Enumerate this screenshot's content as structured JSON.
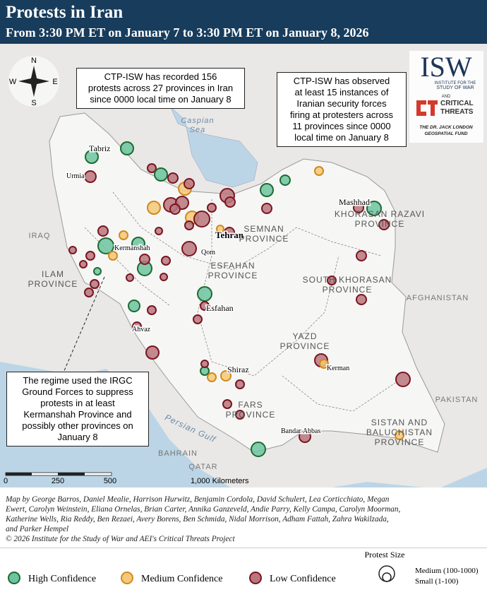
{
  "header": {
    "title": "Protests in Iran",
    "subtitle": "From 3:30 PM ET on January 7 to 3:30 PM ET on January 8, 2026"
  },
  "compass": {
    "n": "N",
    "s": "S",
    "w": "W",
    "e": "E"
  },
  "logos": {
    "isw": "ISW",
    "isw_sub": [
      "INSTITUTE FOR THE",
      "STUDY OF WAR"
    ],
    "and": "AND",
    "ct": [
      "CRITICAL",
      "THREATS"
    ],
    "fund": [
      "THE DR. JACK LONDON",
      "GEOSPATIAL FUND"
    ]
  },
  "callouts": [
    {
      "lines": [
        "CTP-ISW has recorded 156",
        "protests across 27 provinces in Iran",
        "since 0000 local time on January 8"
      ]
    },
    {
      "lines": [
        "CTP-ISW has observed",
        "at least 15 instances of",
        "Iranian security forces",
        "firing at protesters across",
        "11 provinces since 0000",
        "local time on January 8"
      ]
    },
    {
      "lines": [
        "The regime used the IRGC",
        "Ground Forces to suppress",
        "protests in at least",
        "Kermanshah Province and",
        "possibly other provinces on",
        "January 8"
      ]
    }
  ],
  "cities": [
    "Tabriz",
    "Urmia",
    "Tehran",
    "Qom",
    "Kermanshah",
    "Esfahan",
    "Ahvaz",
    "Shiraz",
    "Kerman",
    "Bandar Abbas",
    "Mashhad"
  ],
  "provinces": [
    [
      "SEMNAN",
      "PROVINCE"
    ],
    [
      "KHORASAN RAZAVI",
      "PROVINCE"
    ],
    [
      "ILAM",
      "PROVINCE"
    ],
    [
      "ESFAHAN",
      "PROVINCE"
    ],
    [
      "SOUTH KHORASAN",
      "PROVINCE"
    ],
    [
      "YAZD",
      "PROVINCE"
    ],
    [
      "FARS",
      "PROVINCE"
    ],
    [
      "SISTAN AND",
      "BALUCHISTAN",
      "PROVINCE"
    ]
  ],
  "countries": [
    "IRAQ",
    "AFGHANISTAN",
    "PAKISTAN",
    "BAHRAIN",
    "QATAR"
  ],
  "water": [
    [
      "Caspian",
      "Sea"
    ],
    [
      "Persian Gulf"
    ]
  ],
  "scale": {
    "ticks": [
      "0",
      "250",
      "500"
    ],
    "unit": "1,000 Kilometers"
  },
  "credits": {
    "lines": [
      "Map by George Barros, Daniel Mealie, Harrison Hurwitz, Benjamin Cordola, David Schulert, Lea Corticchiato, Megan",
      "Ewert, Carolyn Weinstein, Eliana Ornelas, Brian Carter, Annika Ganzeveld, Andie Parry, Kelly Campa, Carolyn Moorman,",
      "Katherine Wells, Ria Reddy, Ben Rezaei, Avery Borens, Ben Schmida, Nidal Morrison, Adham Fattah, Zahra Wakilzada,",
      "and Parker Hempel"
    ],
    "copyright": "© 2026 Institute for the Study of War and AEI's Critical Threats Project"
  },
  "legend": {
    "items": [
      "High Confidence",
      "Medium Confidence",
      "Low Confidence"
    ],
    "size_title": "Protest Size",
    "sizes": [
      "Medium (100-1000)",
      "Small (1-100)"
    ]
  }
}
